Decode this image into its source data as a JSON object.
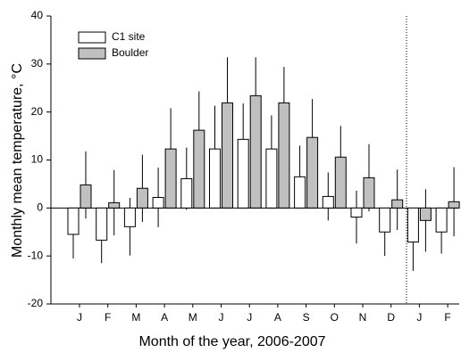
{
  "chart_data": {
    "type": "bar",
    "xlabel": "Month of the year, 2006-2007",
    "ylabel": "Monthly mean temperature, °C",
    "categories": [
      "J",
      "F",
      "M",
      "A",
      "M",
      "J",
      "J",
      "A",
      "S",
      "O",
      "N",
      "D",
      "J",
      "F"
    ],
    "series": [
      {
        "name": "C1 site",
        "color": "#ffffff",
        "values": [
          -5.5,
          -6.7,
          -3.9,
          2.2,
          6.1,
          12.3,
          14.3,
          12.3,
          6.5,
          2.4,
          -1.9,
          -5.0,
          -7.1,
          -5.0
        ],
        "errors": [
          5.0,
          4.8,
          6.0,
          6.2,
          6.5,
          9.0,
          7.5,
          7.0,
          6.5,
          5.0,
          5.5,
          5.0,
          6.0,
          4.5
        ]
      },
      {
        "name": "Boulder",
        "color": "#c0c0c0",
        "values": [
          4.8,
          1.1,
          4.1,
          12.3,
          16.2,
          21.9,
          23.4,
          21.9,
          14.7,
          10.6,
          6.3,
          1.7,
          -2.6,
          1.3
        ],
        "errors": [
          7.0,
          6.8,
          7.0,
          8.5,
          8.1,
          9.5,
          8.0,
          7.5,
          8.0,
          6.5,
          7.0,
          6.3,
          6.5,
          7.2
        ]
      }
    ],
    "ylim": [
      -20,
      40
    ],
    "yticks": [
      -20,
      -10,
      0,
      10,
      20,
      30,
      40
    ],
    "legend": "upper left"
  }
}
